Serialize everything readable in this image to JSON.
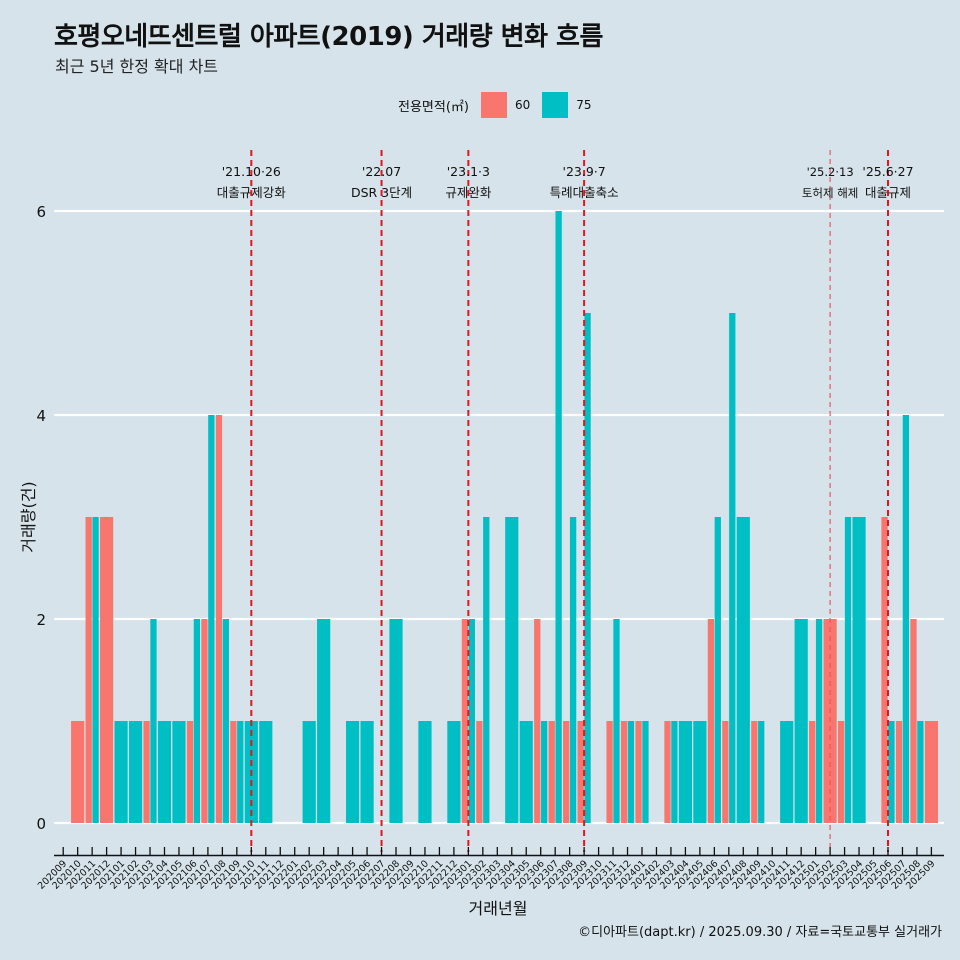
{
  "header": {
    "title": "호평오네뜨센트럴 아파트(2019) 거래량 변화 흐름",
    "subtitle": "최근 5년 한정 확대 차트"
  },
  "legend": {
    "title": "전용면적(㎡)",
    "items": [
      {
        "label": "60",
        "color": "#f8766d"
      },
      {
        "label": "75",
        "color": "#00bfc4"
      }
    ]
  },
  "caption": "©디아파트(dapt.kr) / 2025.09.30 / 자료=국토교통부 실거래가",
  "chart_data": {
    "type": "bar",
    "title": "호평오네뜨센트럴 아파트(2019) 거래량 변화 흐름",
    "subtitle": "최근 5년 한정 확대 차트",
    "xlabel": "거래년월",
    "ylabel": "거래량(건)",
    "ylim": [
      0,
      6
    ],
    "yticks": [
      0,
      2,
      4,
      6
    ],
    "grid": "horizontal",
    "legend_position": "top",
    "categories": [
      "202009",
      "202010",
      "202011",
      "202012",
      "202101",
      "202102",
      "202103",
      "202104",
      "202105",
      "202106",
      "202107",
      "202108",
      "202109",
      "202110",
      "202111",
      "202112",
      "202201",
      "202202",
      "202203",
      "202204",
      "202205",
      "202206",
      "202207",
      "202208",
      "202209",
      "202210",
      "202211",
      "202212",
      "202301",
      "202302",
      "202303",
      "202304",
      "202305",
      "202306",
      "202307",
      "202308",
      "202309",
      "202310",
      "202311",
      "202312",
      "202401",
      "202402",
      "202403",
      "202404",
      "202405",
      "202406",
      "202407",
      "202408",
      "202409",
      "202410",
      "202411",
      "202412",
      "202501",
      "202502",
      "202503",
      "202504",
      "202505",
      "202506",
      "202507",
      "202508",
      "202509"
    ],
    "series": [
      {
        "name": "60",
        "color": "#f8766d",
        "values": [
          0,
          1,
          3,
          3,
          0,
          0,
          1,
          0,
          0,
          1,
          2,
          4,
          1,
          0,
          0,
          0,
          0,
          0,
          0,
          0,
          0,
          0,
          0,
          0,
          0,
          0,
          0,
          0,
          2,
          1,
          0,
          0,
          0,
          2,
          1,
          1,
          1,
          0,
          1,
          1,
          1,
          0,
          1,
          0,
          0,
          2,
          1,
          0,
          1,
          0,
          0,
          0,
          1,
          2,
          1,
          0,
          0,
          3,
          1,
          2,
          1
        ]
      },
      {
        "name": "75",
        "color": "#00bfc4",
        "values": [
          0,
          0,
          3,
          0,
          1,
          1,
          2,
          1,
          1,
          2,
          4,
          2,
          1,
          1,
          1,
          0,
          0,
          1,
          2,
          0,
          1,
          1,
          0,
          2,
          0,
          1,
          0,
          1,
          2,
          3,
          0,
          3,
          1,
          1,
          6,
          3,
          5,
          0,
          2,
          1,
          1,
          0,
          1,
          1,
          1,
          3,
          5,
          3,
          1,
          0,
          1,
          2,
          2,
          0,
          3,
          3,
          0,
          1,
          4,
          1,
          0
        ]
      }
    ],
    "annotations": [
      {
        "category": "202110",
        "date": "'21.10·26",
        "label": "대출규제강화",
        "style": "major"
      },
      {
        "category": "202207",
        "date": "'22.07",
        "label": "DSR 3단계",
        "style": "major"
      },
      {
        "category": "202301",
        "date": "'23.1·3",
        "label": "규제완화",
        "style": "major"
      },
      {
        "category": "202309",
        "date": "'23.9·7",
        "label": "특례대출축소",
        "style": "major"
      },
      {
        "category": "202502",
        "date": "'25.2·13",
        "label": "토허제 해제",
        "style": "minor"
      },
      {
        "category": "202506",
        "date": "'25.6·27",
        "label": "대출규제",
        "style": "major"
      }
    ]
  }
}
